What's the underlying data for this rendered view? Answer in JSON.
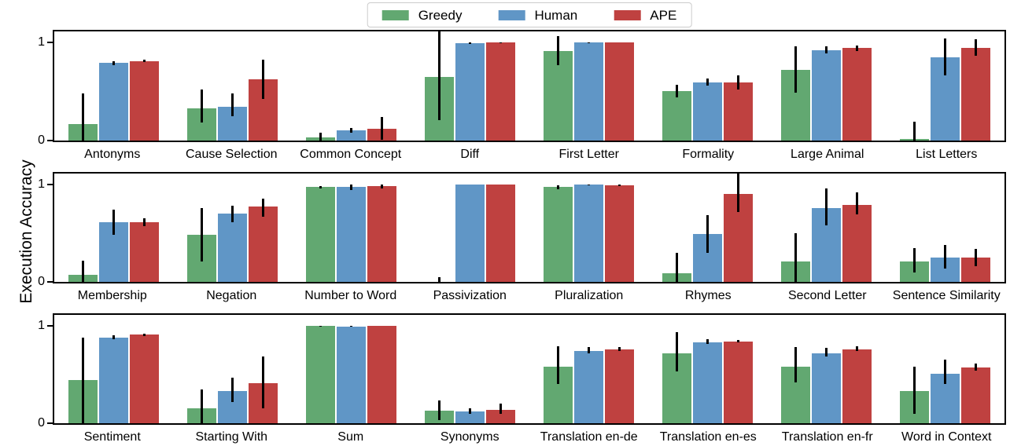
{
  "figure": {
    "ylabel": "Execution Accuracy",
    "background": "#ffffff"
  },
  "legend": {
    "items": [
      {
        "label": "Greedy",
        "color": "#62a871"
      },
      {
        "label": "Human",
        "color": "#6096c6"
      },
      {
        "label": "APE",
        "color": "#bf4140"
      }
    ]
  },
  "colors": {
    "greedy": "#62a871",
    "human": "#6096c6",
    "ape": "#bf4140",
    "error_bar": "#000000",
    "spine": "#000000",
    "legend_border": "#cccccc"
  },
  "yticks": {
    "zero": "0",
    "one": "1"
  },
  "chart_data": {
    "type": "bar",
    "title": "",
    "xlabel": "",
    "ylabel": "Execution Accuracy",
    "ylim": [
      0,
      1.11
    ],
    "ytick_values": [
      0,
      1
    ],
    "grid": false,
    "legend_position": "top-center",
    "legend_entries": [
      "Greedy",
      "Human",
      "APE"
    ],
    "series_colors": {
      "Greedy": "#62a871",
      "Human": "#6096c6",
      "APE": "#bf4140"
    },
    "error_bars": true,
    "rows": [
      {
        "categories": [
          "Antonyms",
          "Cause Selection",
          "Common Concept",
          "Diff",
          "First Letter",
          "Formality",
          "Large Animal",
          "List Letters"
        ],
        "series": [
          {
            "name": "Greedy",
            "values": [
              0.17,
              0.33,
              0.03,
              0.65,
              0.91,
              0.5,
              0.72,
              0.02
            ],
            "err_lo": [
              0.0,
              0.18,
              0.0,
              0.21,
              0.77,
              0.44,
              0.49,
              0.0
            ],
            "err_hi": [
              0.48,
              0.52,
              0.08,
              1.11,
              1.06,
              0.57,
              0.96,
              0.19
            ]
          },
          {
            "name": "Human",
            "values": [
              0.79,
              0.34,
              0.1,
              0.99,
              1.0,
              0.59,
              0.92,
              0.85
            ],
            "err_lo": [
              0.77,
              0.25,
              0.08,
              0.98,
              0.99,
              0.56,
              0.89,
              0.66
            ],
            "err_hi": [
              0.81,
              0.48,
              0.13,
              1.0,
              1.0,
              0.63,
              0.96,
              1.04
            ]
          },
          {
            "name": "APE",
            "values": [
              0.81,
              0.62,
              0.12,
              1.0,
              1.0,
              0.59,
              0.94,
              0.94
            ],
            "err_lo": [
              0.8,
              0.42,
              0.01,
              0.99,
              1.0,
              0.52,
              0.91,
              0.86
            ],
            "err_hi": [
              0.82,
              0.82,
              0.24,
              1.0,
              1.0,
              0.66,
              0.97,
              1.03
            ]
          }
        ]
      },
      {
        "categories": [
          "Membership",
          "Negation",
          "Number to Word",
          "Passivization",
          "Pluralization",
          "Rhymes",
          "Second Letter",
          "Sentence Similarity"
        ],
        "series": [
          {
            "name": "Greedy",
            "values": [
              0.07,
              0.48,
              0.97,
              0.0,
              0.97,
              0.09,
              0.21,
              0.21
            ],
            "err_lo": [
              0.0,
              0.21,
              0.96,
              0.0,
              0.95,
              0.0,
              0.0,
              0.1
            ],
            "err_hi": [
              0.22,
              0.76,
              0.98,
              0.05,
              0.99,
              0.3,
              0.5,
              0.35
            ]
          },
          {
            "name": "Human",
            "values": [
              0.61,
              0.7,
              0.97,
              1.0,
              1.0,
              0.49,
              0.76,
              0.25
            ],
            "err_lo": [
              0.48,
              0.61,
              0.94,
              1.0,
              0.99,
              0.3,
              0.58,
              0.14
            ],
            "err_hi": [
              0.74,
              0.78,
              1.0,
              1.0,
              1.0,
              0.68,
              0.96,
              0.38
            ]
          },
          {
            "name": "APE",
            "values": [
              0.61,
              0.77,
              0.98,
              1.0,
              0.99,
              0.9,
              0.79,
              0.25
            ],
            "err_lo": [
              0.57,
              0.67,
              0.96,
              1.0,
              0.98,
              0.72,
              0.69,
              0.16
            ],
            "err_hi": [
              0.65,
              0.85,
              1.0,
              1.0,
              1.0,
              1.11,
              0.92,
              0.34
            ]
          }
        ]
      },
      {
        "categories": [
          "Sentiment",
          "Starting With",
          "Sum",
          "Synonyms",
          "Translation en-de",
          "Translation en-es",
          "Translation en-fr",
          "Word in Context"
        ],
        "series": [
          {
            "name": "Greedy",
            "values": [
              0.44,
              0.15,
              1.0,
              0.13,
              0.58,
              0.72,
              0.58,
              0.33
            ],
            "err_lo": [
              0.0,
              0.0,
              0.99,
              0.03,
              0.4,
              0.53,
              0.42,
              0.1
            ],
            "err_hi": [
              0.88,
              0.35,
              1.0,
              0.23,
              0.79,
              0.93,
              0.78,
              0.58
            ]
          },
          {
            "name": "Human",
            "values": [
              0.88,
              0.33,
              0.99,
              0.12,
              0.74,
              0.83,
              0.72,
              0.51
            ],
            "err_lo": [
              0.86,
              0.22,
              0.99,
              0.1,
              0.72,
              0.81,
              0.68,
              0.4
            ],
            "err_hi": [
              0.9,
              0.47,
              1.0,
              0.15,
              0.78,
              0.86,
              0.77,
              0.65
            ]
          },
          {
            "name": "APE",
            "values": [
              0.91,
              0.41,
              1.0,
              0.14,
              0.76,
              0.84,
              0.76,
              0.57
            ],
            "err_lo": [
              0.89,
              0.15,
              1.0,
              0.1,
              0.74,
              0.83,
              0.74,
              0.54
            ],
            "err_hi": [
              0.92,
              0.68,
              1.0,
              0.2,
              0.78,
              0.85,
              0.79,
              0.61
            ]
          }
        ]
      }
    ],
    "row_layout": [
      {
        "axes_top": 38,
        "axes_height": 143,
        "labels_top": 181
      },
      {
        "axes_top": 219,
        "axes_height": 142,
        "labels_top": 361
      },
      {
        "axes_top": 399,
        "axes_height": 142,
        "labels_top": 541
      }
    ]
  }
}
